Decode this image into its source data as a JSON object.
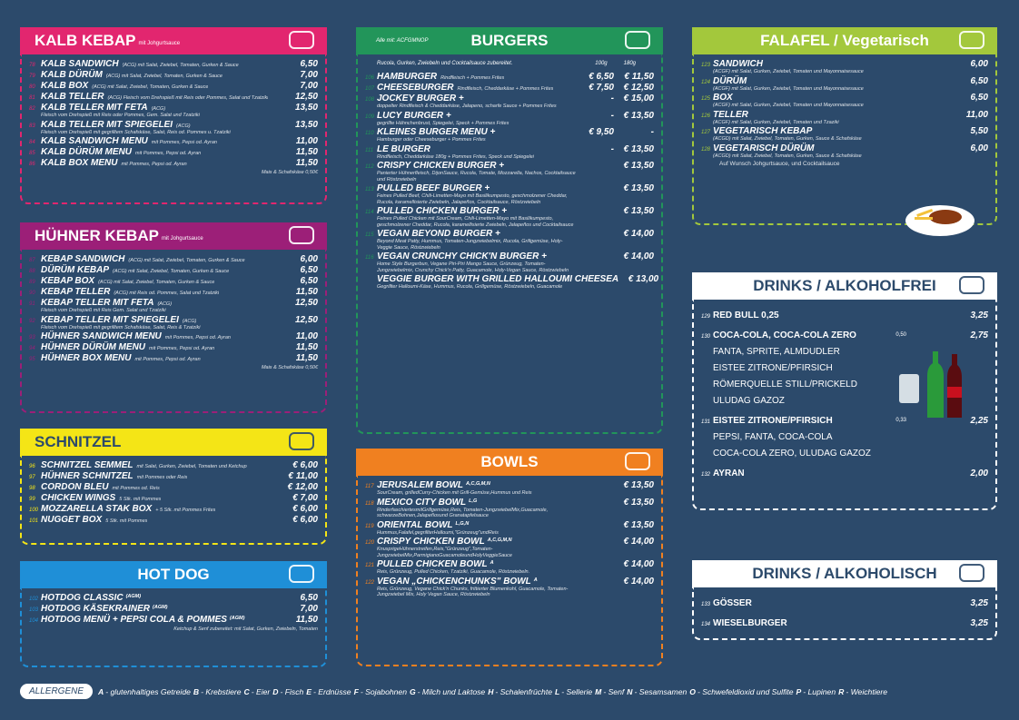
{
  "sections": {
    "kalb_kebap": {
      "title": "KALB KEBAP",
      "subtitle": "mit Johgurtsauce",
      "items": [
        {
          "n": "78",
          "name": "KALB SANDWICH",
          "note": "(ACG) mit Salat, Zwiebel, Tomaten, Gurken & Sauce",
          "price": "6,50"
        },
        {
          "n": "79",
          "name": "KALB DÜRÜM",
          "note": "(ACG) mit Salat, Zwiebel, Tomaten, Gurken & Sauce",
          "price": "7,00"
        },
        {
          "n": "80",
          "name": "KALB BOX",
          "note": "(ACG) mit Salat, Zwiebel, Tomaten, Gurken & Sauce",
          "price": "7,00"
        },
        {
          "n": "81",
          "name": "KALB TELLER",
          "note": "(ACG) Fleisch vom Drehspieß mit Reis oder Pommes, Salat und Tzatziki",
          "price": "12,50"
        },
        {
          "n": "82",
          "name": "KALB TELLER MIT FETA",
          "note": "(ACG)",
          "sub": "Fleisch vom Drehspieß mit Reis oder Pommes, Gem. Salat und Tzatziki",
          "price": "13,50"
        },
        {
          "n": "83",
          "name": "KALB TELLER MIT SPIEGELEI",
          "note": "(ACG)",
          "sub": "Fleisch vom Drehspieß mit gegrilltem Schafskäse, Salat, Reis od. Pommes u. Tzatziki",
          "price": "13,50"
        },
        {
          "n": "84",
          "name": "KALB SANDWICH MENU",
          "note": "mit Pommes, Pepsi od. Ayran",
          "price": "11,00"
        },
        {
          "n": "85",
          "name": "KALB DÜRÜM MENU",
          "note": "mit Pommes, Pepsi od. Ayran",
          "price": "11,50"
        },
        {
          "n": "86",
          "name": "KALB BOX MENU",
          "note": "mit Pommes, Pepsi od. Ayran",
          "price": "11,50"
        }
      ],
      "footer": "Mais & Schafskäse 0,50€"
    },
    "huehner_kebap": {
      "title": "HÜHNER KEBAP",
      "subtitle": "mit Johgurtsauce",
      "items": [
        {
          "n": "87",
          "name": "KEBAP SANDWICH",
          "note": "(ACG) mit Salat, Zwiebel, Tomaten, Gurken & Sauce",
          "price": "6,00"
        },
        {
          "n": "88",
          "name": "DÜRÜM KEBAP",
          "note": "(ACG) mit Salat, Zwiebel, Tomaten, Gurken & Sauce",
          "price": "6,50"
        },
        {
          "n": "89",
          "name": "KEBAP BOX",
          "note": "(ACG) mit Salat, Zwiebel, Tomaten, Gurken & Sauce",
          "price": "6,50"
        },
        {
          "n": "90",
          "name": "KEBAP TELLER",
          "note": "(ACG) mit Reis od. Pommes, Salat und Tzatziki",
          "price": "11,50"
        },
        {
          "n": "91",
          "name": "KEBAP TELLER MIT FETA",
          "note": "(ACG)",
          "sub": "Fleisch vom Drehspieß mit Reis Gem. Salat und Tzatziki",
          "price": "12,50"
        },
        {
          "n": "92",
          "name": "KEBAP TELLER MIT SPIEGELEI",
          "note": "(ACG)",
          "sub": "Fleisch vom Drehspieß mit gegrilltem Schafskäse, Salat, Reis & Tzatziki",
          "price": "12,50"
        },
        {
          "n": "93",
          "name": "HÜHNER SANDWICH MENU",
          "note": "mit Pommes, Pepsi od. Ayran",
          "price": "11,00"
        },
        {
          "n": "94",
          "name": "HÜHNER DÜRÜM MENU",
          "note": "mit Pommes, Pepsi od. Ayran",
          "price": "11,50"
        },
        {
          "n": "95",
          "name": "HÜHNER BOX MENU",
          "note": "mit Pommes, Pepsi od. Ayran",
          "price": "11,50"
        }
      ],
      "footer": "Mais & Schafskäse 0,50€"
    },
    "schnitzel": {
      "title": "SCHNITZEL",
      "items": [
        {
          "n": "96",
          "name": "SCHNITZEL SEMMEL",
          "note": "mit Salat, Gurken, Zwiebel, Tomaten und Ketchup",
          "price": "€ 6,00"
        },
        {
          "n": "97",
          "name": "HÜHNER SCHNITZEL",
          "note": "mit Pommes oder Reis",
          "price": "€ 11,00"
        },
        {
          "n": "98",
          "name": "CORDON BLEU",
          "note": "mit Pommes od. Reis",
          "price": "€ 12,00"
        },
        {
          "n": "99",
          "name": "CHICKEN WINGS",
          "note": "5 Stk. mit Pommes",
          "price": "€ 7,00"
        },
        {
          "n": "100",
          "name": "MOZZARELLA STAK BOX",
          "note": "+ 5 Stk. mit Pommes Frites",
          "price": "€ 6,00"
        },
        {
          "n": "101",
          "name": "NUGGET BOX",
          "note": "5 Stk. mit Pommes",
          "price": "€ 6,00"
        }
      ]
    },
    "hot_dog": {
      "title": "HOT DOG",
      "items": [
        {
          "n": "102",
          "name": "HOTDOG CLASSIC",
          "tags": "(AGM)",
          "price": "6,50"
        },
        {
          "n": "103",
          "name": "HOTDOG KÄSEKRAINER",
          "tags": "(AGM)",
          "price": "7,00"
        },
        {
          "n": "104",
          "name": "HOTDOG MENÜ + PEPSI COLA & POMMES",
          "tags": "(AGM)",
          "price": "11,50"
        }
      ],
      "footer": "Ketchup & Senf zubereitet: mit Salat, Gurken, Zwiebeln, Tomaten"
    },
    "burgers": {
      "title": "BURGERS",
      "allergens": "Alle mit: ACFGMNOP",
      "intro": "Rucola, Gurken, Zwiebeln und Cocktailsauce zubereitet.",
      "size_a": "100g",
      "size_b": "180g",
      "items": [
        {
          "n": "106",
          "name": "HAMBURGER",
          "note": "Rindfleisch + Pommes Frites",
          "price": "€ 6,50",
          "price2": "€ 11,50"
        },
        {
          "n": "107",
          "name": "CHEESEBURGER",
          "note": "Rindfleisch, Cheddarkäse + Pommes Frites",
          "price": "€ 7,50",
          "price2": "€ 12,50"
        },
        {
          "n": "108",
          "name": "JOCKEY BURGER +",
          "sub": "doppelter Rindfleisch & Cheddarkäse, Jalapeno, scharfe Sauce + Pommes Frites",
          "price": "-",
          "price2": "€ 15,00"
        },
        {
          "n": "109",
          "name": "LUCY BURGER +",
          "sub": "gegrillte Hähnchenbrust, Spiegelei, Speck + Pommes Frites",
          "price": "-",
          "price2": "€ 13,50"
        },
        {
          "n": "110",
          "name": "KLEINES BURGER MENU +",
          "sub": "Hamburger oder Cheeseburger + Pommes Frites",
          "price": "€ 9,50",
          "price2": "-"
        },
        {
          "n": "111",
          "name": "LE BURGER",
          "sub": "Rindfleisch, Cheddarkäse 180g + Pommes Frites, Speck und Spiegelei",
          "price": "-",
          "price2": "€ 13,50"
        },
        {
          "n": "112",
          "name": "CRISPY CHICKEN BURGER +",
          "sub": "Panierter Hühnerfleisch, DijonSauce, Rucola, Tomate, Mozzarella, Nachos, Cocktailsauce und Röstzwiebeln",
          "price2": "€ 13,50"
        },
        {
          "n": "113",
          "name": "PULLED BEEF BURGER +",
          "sub": "Feines Pulled Beef, Chili-Limetten-Mayo mit Basilikumpesto, geschmolzener Cheddar, Rucola, karamellisierte Zwiebeln, Jalapeños, Cocktailsauce, Röstzwiebeln",
          "price2": "€ 13,50"
        },
        {
          "n": "114",
          "name": "PULLED CHICKEN BURGER +",
          "sub": "Feines Pulled Chicken mit SourCream, Chili-Limetten-Mayo mit Basilikumpesto, geschmolzener Cheddar, Rucola, karamellisierte Zwiebeln, Jalapeños und Cocktailsauce",
          "price2": "€ 13,50"
        },
        {
          "n": "115",
          "name": "VEGAN BEYOND BURGER +",
          "sub": "Beyond Meat Patty, Hummus, Tomaten-Jungzwiebelmix, Rucola, Grillgemüse, Holy-Veggie Sauce, Röstzwiebeln",
          "price2": "€ 14,00"
        },
        {
          "n": "116",
          "name": "VEGAN CRUNCHY CHICK'N BURGER +",
          "sub": "Home Style Burgerbun, Vegane Piri-Piri Mango Sauce, Grünzeug, Tomaten-Jungzwiebelmix, Crunchy Chick'n Patty, Guacamole, Holy-Vegan Sauce, Röstzwiebeln",
          "price2": "€ 14,00"
        },
        {
          "name": "VEGGIE BURGER WITH GRILLED HALLOUMI CHEESEA",
          "sub": "Gegrillter Halloumi-Käse, Hummus, Rucola, Grillgemüse, Röstzwiebeln, Guacamole",
          "price2": "€ 13,00"
        }
      ]
    },
    "bowls": {
      "title": "BOWLS",
      "items": [
        {
          "n": "117",
          "name": "JERUSALEM BOWL",
          "tags": "A,C,G,M,N",
          "sub": "SourCream, grilledCurry-Chicken mit Grill-Gemüse,Hummus und Reis",
          "price": "€ 13,50"
        },
        {
          "n": "118",
          "name": "MEXICO CITY BOWL",
          "tags": "L,G",
          "sub": "RinderfaschiertesmitGrillgemüse,Reis, Tomaten-JungzwiebelMix,Guacamole, schwarzeBohnen,Jalapeñosund Granatapfelsauce",
          "price": "€ 13,50"
        },
        {
          "n": "119",
          "name": "ORIENTAL BOWL",
          "tags": "L,G,N",
          "sub": "Hummus,Falafel,gegrillterHalloumi,\"Grünzeug\"undReis",
          "price": "€ 13,50"
        },
        {
          "n": "120",
          "name": "CRISPY CHICKEN BOWL",
          "tags": "A,C,G,M,N",
          "sub": "KnusprigeHühnerstreifen,Reis,\"Grünzeug\",Tomaten-JungzwiebelMix,ParmigianoGuacamoleundHolyVeggieSauce",
          "price": "€ 14,00"
        },
        {
          "n": "121",
          "name": "PULLED CHICKEN BOWL",
          "tags": "A",
          "sub": "Reis, Grünzeug, Pulled Chicken, Tzatziki, Guacamole, Röstzwiebeln.",
          "price": "€ 14,00"
        },
        {
          "n": "122",
          "name": "VEGAN „CHICKENCHUNKS\" BOWL",
          "tags": "A",
          "sub": "Reis, Grünzeug, Vegane Chick'n Chunks, frittierter Blumenkohl, Guacamole, Tomaten-Jungzwiebel Mix, Holy Vegan Sauce, Röstzwiebeln",
          "price": "€ 14,00"
        }
      ]
    },
    "falafel": {
      "title": "FALAFEL / Vegetarisch",
      "items": [
        {
          "n": "123",
          "name": "SANDWICH",
          "sub": "(ACGF) mit Salat, Gurken, Zwiebel, Tomaten und Mayonnaisesauce",
          "price": "6,00"
        },
        {
          "n": "124",
          "name": "DÜRÜM",
          "sub": "(ACGF) mit Salat, Gurken, Zwiebel, Tomaten und Mayonnaisesauce",
          "price": "6,50"
        },
        {
          "n": "125",
          "name": "BOX",
          "sub": "(ACGF) mit Salat, Gurken, Zwiebel, Tomaten und Mayonnaisesauce",
          "price": "6,50"
        },
        {
          "n": "126",
          "name": "TELLER",
          "sub": "(ACGF) mit Salat, Gurken, Zwiebel, Tomaten und Tzaziki",
          "price": "11,00"
        },
        {
          "n": "127",
          "name": "VEGETARISCH KEBAP",
          "sub": "(ACGD) mit Salat, Zwiebel, Tomaten, Gurken, Sauce & Schafskäse",
          "price": "5,50"
        },
        {
          "n": "128",
          "name": "VEGETARISCH DÜRÜM",
          "sub": "(ACGD) mit Salat, Zwiebel, Tomaten, Gurken, Sauce & Schafskäse",
          "price": "6,00"
        }
      ],
      "footer": "Auf Wunsch Johgurtsauce, und Cocktailsauce"
    },
    "drinks_alkoholfrei": {
      "title": "DRINKS / ALKOHOLFREI",
      "items": [
        {
          "n": "129",
          "names": [
            "RED BULL 0,25"
          ],
          "price": "3,25"
        },
        {
          "n": "130",
          "names": [
            "COCA-COLA, COCA-COLA ZERO",
            "FANTA, SPRITE, ALMDUDLER",
            "EISTEE ZITRONE/PFIRSICH",
            "RÖMERQUELLE STILL/PRICKELD",
            "ULUDAG GAZOZ"
          ],
          "size": "0,50",
          "price": "2,75"
        },
        {
          "n": "131",
          "names": [
            "EISTEE ZITRONE/PFIRSICH",
            "PEPSI, FANTA, COCA-COLA",
            "COCA-COLA ZERO, ULUDAG GAZOZ"
          ],
          "size": "0,33",
          "price": "2,25"
        },
        {
          "n": "132",
          "names": [
            "AYRAN"
          ],
          "price": "2,00"
        }
      ]
    },
    "drinks_alkoholisch": {
      "title": "DRINKS / ALKOHOLISCH",
      "items": [
        {
          "n": "133",
          "names": [
            "GÖSSER"
          ],
          "price": "3,25"
        },
        {
          "n": "134",
          "names": [
            "WIESELBURGER"
          ],
          "price": "3,25"
        }
      ]
    }
  },
  "allergene": {
    "label": "ALLERGENE",
    "items": [
      {
        "code": "A",
        "text": "- glutenhaltiges Getreide"
      },
      {
        "code": "B",
        "text": "- Krebstiere"
      },
      {
        "code": "C",
        "text": "- Eier"
      },
      {
        "code": "D",
        "text": "- Fisch"
      },
      {
        "code": "E",
        "text": "- Erdnüsse"
      },
      {
        "code": "F",
        "text": "- Sojabohnen"
      },
      {
        "code": "G",
        "text": "- Milch und Laktose"
      },
      {
        "code": "H",
        "text": "- Schalenfrüchte"
      },
      {
        "code": "L",
        "text": "- Sellerie"
      },
      {
        "code": "M",
        "text": "- Senf"
      },
      {
        "code": "N",
        "text": "- Sesamsamen"
      },
      {
        "code": "O",
        "text": "- Schwefeldioxid und Sulfite"
      },
      {
        "code": "P",
        "text": "- Lupinen"
      },
      {
        "code": "R",
        "text": "- Weichtiere"
      }
    ]
  }
}
